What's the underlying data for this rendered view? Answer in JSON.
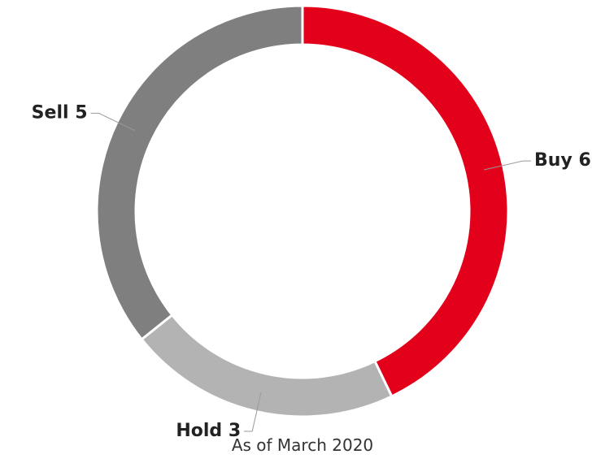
{
  "chart_data": {
    "type": "donut",
    "categories": [
      "Buy",
      "Hold",
      "Sell"
    ],
    "values": [
      6,
      3,
      5
    ],
    "colors": [
      "#e2001a",
      "#b3b3b3",
      "#7f7f7f"
    ],
    "note": "As of March 2020"
  }
}
